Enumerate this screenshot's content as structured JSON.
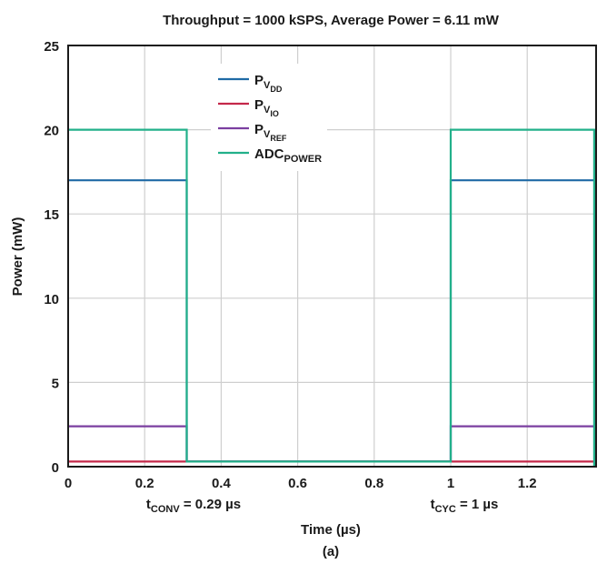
{
  "chart_data": {
    "type": "line",
    "title": "Throughput = 1000 kSPS, Average Power = 6.11 mW",
    "xlabel": "Time (µs)",
    "ylabel": "Power (mW)",
    "caption": "(a)",
    "xlim": [
      0,
      1.38
    ],
    "ylim": [
      0,
      25
    ],
    "grid": true,
    "x_ticks": [
      0,
      0.2,
      0.4,
      0.6,
      0.8,
      1,
      1.2
    ],
    "x_tick_labels": [
      "0",
      "0.2",
      "0.4",
      "0.6",
      "0.8",
      "1",
      "1.2"
    ],
    "y_ticks": [
      0,
      5,
      10,
      15,
      20,
      25
    ],
    "y_tick_labels": [
      "0",
      "5",
      "10",
      "15",
      "20",
      "25"
    ],
    "series": [
      {
        "key": "vdd",
        "name": "P",
        "sub1": "V",
        "sub2": "DD",
        "color": "#1f6aa5",
        "x": [
          0,
          0.31,
          0.31,
          1,
          1,
          1.38
        ],
        "y": [
          17,
          17,
          0.3,
          0.3,
          17,
          17
        ]
      },
      {
        "key": "vio",
        "name": "P",
        "sub1": "V",
        "sub2": "IO",
        "color": "#c4284a",
        "x": [
          0,
          0.31,
          1,
          1.38
        ],
        "y": [
          0.3,
          0.3,
          0.3,
          0.3
        ]
      },
      {
        "key": "vref",
        "name": "P",
        "sub1": "V",
        "sub2": "REF",
        "color": "#7b3fa0",
        "x": [
          0,
          0.31,
          0.31,
          1,
          1,
          1.38
        ],
        "y": [
          2.4,
          2.4,
          0.3,
          0.3,
          2.4,
          2.4
        ]
      },
      {
        "key": "adc",
        "name": "ADC",
        "sub1": "POWER",
        "sub2": "",
        "color": "#22b08a",
        "x": [
          0,
          0.31,
          0.31,
          1,
          1,
          1.375,
          1.375
        ],
        "y": [
          20,
          20,
          0.3,
          0.3,
          20,
          20,
          0
        ]
      }
    ],
    "annotations": [
      {
        "key": "tconv",
        "t": "t",
        "sub": "CONV",
        "rest": " = 0.29 µs"
      },
      {
        "key": "tcyc",
        "t": "t",
        "sub": "CYC",
        "rest": " = 1 µs"
      }
    ],
    "legend_position": "top-center"
  }
}
